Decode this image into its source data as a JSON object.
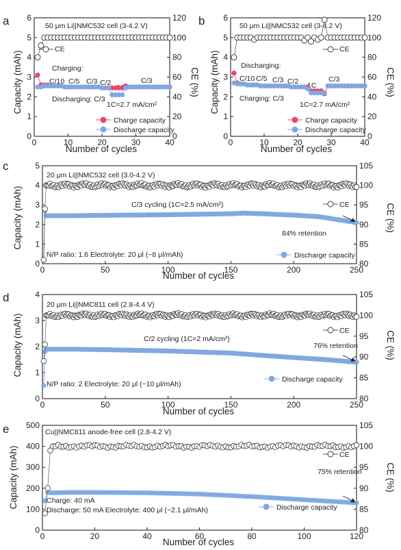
{
  "colors": {
    "ce": "#333333",
    "charge": "#e8466a",
    "discharge": "#7fa8e0",
    "axis": "#222222"
  },
  "chart_data": [
    {
      "id": "a",
      "letter": "a",
      "type": "scatter",
      "xlabel": "Number of cycles",
      "ylabel": "Capacity (mAh)",
      "y2label": "CE (%)",
      "xlim": [
        0,
        40
      ],
      "ylim": [
        0,
        6
      ],
      "y2lim": [
        0,
        120
      ],
      "xticks": [
        0,
        10,
        20,
        30,
        40
      ],
      "yticks": [
        0,
        1,
        2,
        3,
        4,
        5,
        6
      ],
      "y2ticks": [
        0,
        20,
        40,
        60,
        80,
        100,
        120
      ],
      "annotations": [
        "50 μm Li||NMC532 cell (3-4.2 V)",
        "Charging:",
        "C/10",
        "C/5",
        "C/3",
        "C/2",
        "1C",
        "C/3",
        "Discharging: C/3",
        "1C=2.7 mA/cm²"
      ],
      "legend": {
        "ce": "CE",
        "charge": "Charge capacity",
        "discharge": "Discharge capacity"
      },
      "series": [
        {
          "name": "CE",
          "axis": "right",
          "x": [
            1,
            2,
            3,
            4,
            5,
            6,
            7,
            8,
            9,
            10,
            11,
            12,
            13,
            14,
            15,
            16,
            17,
            18,
            19,
            20,
            21,
            22,
            23,
            24,
            25,
            26,
            27,
            28,
            29,
            30,
            31,
            32,
            33,
            34,
            35,
            36,
            37,
            38,
            39,
            40
          ],
          "y": [
            80,
            92,
            100,
            100,
            100,
            100,
            100,
            100,
            100,
            100,
            100,
            100,
            100,
            100,
            100,
            100,
            100,
            100,
            100,
            100,
            100,
            100,
            100,
            100,
            100,
            100,
            100,
            100,
            100,
            100,
            100,
            100,
            100,
            100,
            100,
            100,
            100,
            100,
            100,
            100
          ]
        },
        {
          "name": "Charge capacity",
          "axis": "left",
          "x": [
            1,
            2,
            3,
            4,
            5,
            6,
            7,
            8,
            9,
            10,
            11,
            12,
            13,
            14,
            15,
            16,
            17,
            18,
            19,
            20,
            21,
            22,
            23,
            24,
            25,
            26,
            27,
            28,
            29,
            30,
            31,
            32,
            33,
            34,
            35,
            36,
            37,
            38,
            39,
            40
          ],
          "y": [
            3.1,
            2.6,
            2.6,
            2.6,
            2.55,
            2.55,
            2.55,
            2.55,
            2.5,
            2.5,
            2.5,
            2.5,
            2.5,
            2.5,
            2.5,
            2.5,
            2.5,
            2.5,
            2.5,
            2.45,
            2.45,
            2.45,
            2.45,
            2.45,
            2.45,
            2.45,
            2.55,
            2.5,
            2.5,
            2.5,
            2.5,
            2.5,
            2.5,
            2.5,
            2.5,
            2.5,
            2.5,
            2.5,
            2.5,
            2.5
          ]
        },
        {
          "name": "Discharge capacity",
          "axis": "left",
          "x": [
            1,
            2,
            3,
            4,
            5,
            6,
            7,
            8,
            9,
            10,
            11,
            12,
            13,
            14,
            15,
            16,
            17,
            18,
            19,
            20,
            21,
            22,
            23,
            24,
            25,
            26,
            27,
            28,
            29,
            30,
            31,
            32,
            33,
            34,
            35,
            36,
            37,
            38,
            39,
            40
          ],
          "y": [
            2.5,
            2.5,
            2.55,
            2.55,
            2.55,
            2.55,
            2.55,
            2.55,
            2.5,
            2.5,
            2.5,
            2.5,
            2.5,
            2.5,
            2.5,
            2.5,
            2.5,
            2.5,
            2.5,
            2.45,
            2.45,
            2.45,
            2.1,
            2.1,
            2.1,
            2.1,
            2.45,
            2.5,
            2.5,
            2.5,
            2.5,
            2.5,
            2.5,
            2.5,
            2.5,
            2.5,
            2.5,
            2.5,
            2.5,
            2.5
          ]
        }
      ]
    },
    {
      "id": "b",
      "letter": "b",
      "type": "scatter",
      "xlabel": "Number of cycles",
      "ylabel": "Capacity (mAh)",
      "y2label": "CE (%)",
      "xlim": [
        0,
        40
      ],
      "ylim": [
        0,
        6
      ],
      "y2lim": [
        0,
        120
      ],
      "xticks": [
        0,
        10,
        20,
        30,
        40
      ],
      "yticks": [
        0,
        1,
        2,
        3,
        4,
        5,
        6
      ],
      "y2ticks": [
        0,
        20,
        40,
        60,
        80,
        100,
        120
      ],
      "annotations": [
        "50 μm Li||NMC532 cell (3-4.2 V)",
        "Discharging:",
        "C/10",
        "C/5",
        "C/3",
        "C/2",
        "1C",
        "C/3",
        "Charging: C/3",
        "1C=2.7 mA/cm²"
      ],
      "legend": {
        "ce": "CE",
        "charge": "Charge capacity",
        "discharge": "Discharge capacity"
      },
      "series": [
        {
          "name": "CE",
          "axis": "right",
          "x": [
            1,
            2,
            3,
            4,
            5,
            6,
            7,
            8,
            9,
            10,
            11,
            12,
            13,
            14,
            15,
            16,
            17,
            18,
            19,
            20,
            21,
            22,
            23,
            24,
            25,
            26,
            27,
            28,
            29,
            30,
            31,
            32,
            33,
            34,
            35,
            36,
            37,
            38,
            39,
            40
          ],
          "y": [
            80,
            100,
            100,
            100,
            100,
            100,
            98,
            100,
            100,
            100,
            100,
            100,
            100,
            100,
            100,
            100,
            100,
            100,
            100,
            100,
            100,
            97,
            100,
            96,
            100,
            98,
            100,
            118,
            100,
            100,
            100,
            100,
            100,
            100,
            100,
            100,
            100,
            100,
            100,
            100
          ]
        },
        {
          "name": "Charge capacity",
          "axis": "left",
          "x": [
            1,
            2,
            3,
            4,
            5,
            6,
            7,
            8,
            9,
            10,
            11,
            12,
            13,
            14,
            15,
            16,
            17,
            18,
            19,
            20,
            21,
            22,
            23,
            24,
            25,
            26,
            27,
            28,
            29,
            30,
            31,
            32,
            33,
            34,
            35,
            36,
            37,
            38,
            39,
            40
          ],
          "y": [
            3.2,
            2.7,
            2.65,
            2.65,
            2.6,
            2.6,
            2.6,
            2.6,
            2.55,
            2.55,
            2.55,
            2.55,
            2.55,
            2.55,
            2.55,
            2.55,
            2.55,
            2.5,
            2.5,
            2.5,
            2.5,
            2.5,
            2.5,
            2.3,
            2.3,
            2.3,
            2.3,
            2.15,
            2.55,
            2.55,
            2.55,
            2.55,
            2.55,
            2.55,
            2.55,
            2.55,
            2.55,
            2.55,
            2.55,
            2.55
          ]
        },
        {
          "name": "Discharge capacity",
          "axis": "left",
          "x": [
            1,
            2,
            3,
            4,
            5,
            6,
            7,
            8,
            9,
            10,
            11,
            12,
            13,
            14,
            15,
            16,
            17,
            18,
            19,
            20,
            21,
            22,
            23,
            24,
            25,
            26,
            27,
            28,
            29,
            30,
            31,
            32,
            33,
            34,
            35,
            36,
            37,
            38,
            39,
            40
          ],
          "y": [
            2.7,
            2.65,
            2.65,
            2.65,
            2.6,
            2.6,
            2.6,
            2.6,
            2.55,
            2.55,
            2.55,
            2.55,
            2.55,
            2.55,
            2.55,
            2.55,
            2.55,
            2.5,
            2.5,
            2.5,
            2.5,
            2.5,
            2.4,
            2.2,
            2.2,
            2.2,
            2.2,
            2.2,
            2.55,
            2.55,
            2.55,
            2.55,
            2.55,
            2.55,
            2.55,
            2.55,
            2.55,
            2.55,
            2.55,
            2.55
          ]
        }
      ]
    },
    {
      "id": "c",
      "letter": "c",
      "type": "scatter",
      "xlabel": "Number of cycles",
      "ylabel": "Capacity (mAh)",
      "y2label": "CE (%)",
      "xlim": [
        0,
        250
      ],
      "ylim": [
        0,
        5
      ],
      "y2lim": [
        80,
        105
      ],
      "xticks": [
        0,
        50,
        100,
        150,
        200,
        250
      ],
      "yticks": [
        0,
        1,
        2,
        3,
        4,
        5
      ],
      "y2ticks": [
        80,
        85,
        90,
        95,
        100,
        105
      ],
      "annotations": [
        "20 μm Li||NMC532 cell (3.0-4.2 V)",
        "C/3 cycling (1C=2.5 mA/cm²)",
        "84% retention",
        "N/P ratio: 1.6  Electrolyte: 20 μl (~8 μl/mAh)"
      ],
      "legend": {
        "ce": "CE",
        "discharge": "Discharge capacity"
      },
      "discharge_curve": {
        "x": [
          1,
          2,
          3,
          10,
          25,
          50,
          100,
          150,
          160,
          175,
          200,
          220,
          240,
          250
        ],
        "y": [
          0.2,
          2.7,
          2.45,
          2.45,
          2.45,
          2.47,
          2.5,
          2.55,
          2.58,
          2.55,
          2.48,
          2.4,
          2.2,
          2.1
        ]
      },
      "ce_curve": {
        "x": [
          1,
          2,
          3,
          5,
          250
        ],
        "y": [
          81,
          94,
          100,
          100,
          100
        ],
        "noise": 0.6
      }
    },
    {
      "id": "d",
      "letter": "d",
      "type": "scatter",
      "xlabel": "Number of cycles",
      "ylabel": "Capacity (mAh)",
      "y2label": "CE (%)",
      "xlim": [
        0,
        250
      ],
      "ylim": [
        0,
        4
      ],
      "y2lim": [
        80,
        105
      ],
      "xticks": [
        0,
        50,
        100,
        150,
        200,
        250
      ],
      "yticks": [
        0,
        1,
        2,
        3,
        4
      ],
      "y2ticks": [
        80,
        85,
        90,
        95,
        100,
        105
      ],
      "annotations": [
        "20 μm Li||NMC811 cell (2.8-4.4 V)",
        "C/2 cycling (1C=2 mA/cm²)",
        "76% retention",
        "N/P ratio: 2  Electrolyte: 20 μl (~10 μl/mAh)"
      ],
      "legend": {
        "ce": "CE",
        "discharge": "Discharge capacity"
      },
      "discharge_curve": {
        "x": [
          1,
          2,
          3,
          10,
          25,
          50,
          100,
          150,
          175,
          200,
          225,
          250
        ],
        "y": [
          0.5,
          1.8,
          1.9,
          1.9,
          1.9,
          1.88,
          1.83,
          1.75,
          1.66,
          1.58,
          1.5,
          1.4
        ]
      },
      "ce_curve": {
        "x": [
          1,
          2,
          3,
          5,
          250
        ],
        "y": [
          89,
          93,
          100,
          100,
          100
        ],
        "noise": 0.5
      }
    },
    {
      "id": "e",
      "letter": "e",
      "type": "scatter",
      "xlabel": "Number of cycles",
      "ylabel": "Capacity (mAh)",
      "y2label": "CE (%)",
      "xlim": [
        0,
        120
      ],
      "ylim": [
        0,
        500
      ],
      "y2lim": [
        80,
        105
      ],
      "xticks": [
        0,
        20,
        40,
        60,
        80,
        100,
        120
      ],
      "yticks": [
        0,
        100,
        200,
        300,
        400,
        500
      ],
      "y2ticks": [
        80,
        85,
        90,
        95,
        100,
        105
      ],
      "annotations": [
        "Cu||NMC811 anode-free cell (2.8-4.2 V)",
        "75% retention",
        "Charge: 40 mA",
        "Discharge: 50 mA   Electrolyte: 400 μl (~2.1 μl/mAh)"
      ],
      "legend": {
        "ce": "CE",
        "discharge": "Discharge capacity"
      },
      "discharge_curve": {
        "x": [
          1,
          2,
          3,
          5,
          10,
          20,
          40,
          60,
          80,
          100,
          120
        ],
        "y": [
          140,
          180,
          178,
          178,
          180,
          180,
          178,
          172,
          160,
          145,
          130
        ]
      },
      "ce_curve": {
        "x": [
          1,
          2,
          3,
          4,
          5,
          120
        ],
        "y": [
          84,
          90,
          99,
          100,
          100,
          100
        ],
        "noise": 0.4
      }
    }
  ]
}
